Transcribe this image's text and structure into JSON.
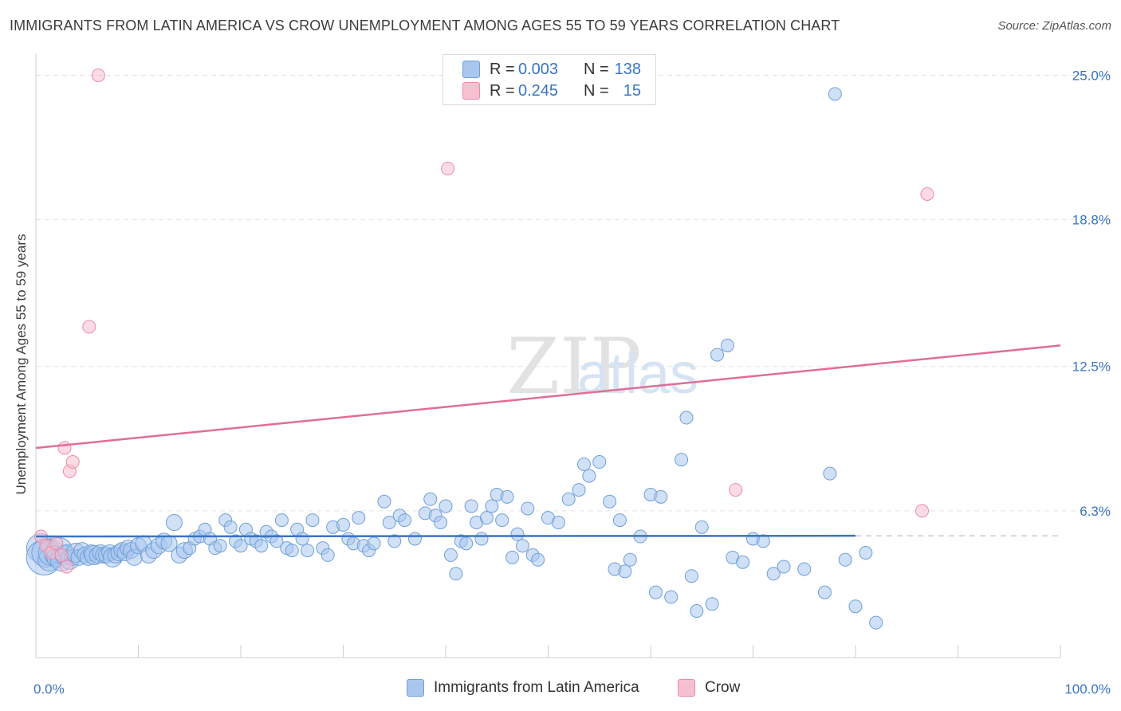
{
  "title": "IMMIGRANTS FROM LATIN AMERICA VS CROW UNEMPLOYMENT AMONG AGES 55 TO 59 YEARS CORRELATION CHART",
  "source": "Source: ZipAtlas.com",
  "watermark": {
    "zip": "ZIP",
    "atlas": "atlas"
  },
  "legend": {
    "rows": [
      {
        "r_label": "R =",
        "r_value": "0.003",
        "n_label": "N =",
        "n_value": "138"
      },
      {
        "r_label": "R =",
        "r_value": "0.245",
        "n_label": "N =",
        "n_value": "15"
      }
    ]
  },
  "bottom_legend": {
    "series1": "Immigrants from Latin America",
    "series2": "Crow"
  },
  "colors": {
    "blue_fill": "#a9c7ee",
    "blue_stroke": "#6f9fd8",
    "blue_line": "#3a74c4",
    "pink_fill": "#f7c0d0",
    "pink_stroke": "#ec8aa8",
    "pink_line": "#e06e98",
    "tick_label": "#3a74c4",
    "grid": "#e3e3e3"
  },
  "chart_data": {
    "type": "scatter",
    "title": "IMMIGRANTS FROM LATIN AMERICA VS CROW UNEMPLOYMENT AMONG AGES 55 TO 59 YEARS CORRELATION CHART",
    "xlabel": "",
    "ylabel": "Unemployment Among Ages 55 to 59 years",
    "xlim": [
      0,
      100
    ],
    "ylim": [
      0,
      25.7
    ],
    "x_tick_labels": [
      "0.0%",
      "100.0%"
    ],
    "y_ticks": [
      6.3,
      12.5,
      18.8,
      25.0
    ],
    "y_tick_labels": [
      "6.3%",
      "12.5%",
      "18.8%",
      "25.0%"
    ],
    "grid": true,
    "series": [
      {
        "name": "Immigrants from Latin America",
        "R": 0.003,
        "N": 138,
        "trend": {
          "x0": 0,
          "y0": 5.2,
          "x1": 80,
          "y1": 5.23,
          "dashed_to": 100
        },
        "points": [
          [
            0.5,
            4.7,
            18
          ],
          [
            0.8,
            4.3,
            22
          ],
          [
            1,
            4.5,
            18
          ],
          [
            1.3,
            4.2,
            14
          ],
          [
            1.5,
            4.5,
            16
          ],
          [
            1.8,
            4.4,
            12
          ],
          [
            2,
            4.3,
            12
          ],
          [
            2.3,
            4.6,
            16
          ],
          [
            2.5,
            4.2,
            14
          ],
          [
            2.8,
            4.4,
            12
          ],
          [
            3,
            4.5,
            10
          ],
          [
            3.3,
            4.2,
            12
          ],
          [
            3.6,
            4.3,
            10
          ],
          [
            3.9,
            4.5,
            12
          ],
          [
            4.2,
            4.3,
            10
          ],
          [
            4.5,
            4.6,
            10
          ],
          [
            4.8,
            4.4,
            10
          ],
          [
            5.1,
            4.3,
            10
          ],
          [
            5.4,
            4.5,
            10
          ],
          [
            5.7,
            4.4,
            12
          ],
          [
            6,
            4.4,
            10
          ],
          [
            6.3,
            4.5,
            10
          ],
          [
            6.6,
            4.4,
            10
          ],
          [
            6.9,
            4.4,
            10
          ],
          [
            7.2,
            4.5,
            10
          ],
          [
            7.5,
            4.3,
            12
          ],
          [
            7.8,
            4.4,
            10
          ],
          [
            8.1,
            4.5,
            10
          ],
          [
            8.4,
            4.6,
            10
          ],
          [
            8.7,
            4.5,
            10
          ],
          [
            9,
            4.7,
            10
          ],
          [
            9.3,
            4.6,
            10
          ],
          [
            9.6,
            4.3,
            10
          ],
          [
            10,
            4.8,
            10
          ],
          [
            10.5,
            4.9,
            10
          ],
          [
            11,
            4.4,
            10
          ],
          [
            11.5,
            4.6,
            10
          ],
          [
            12,
            4.8,
            10
          ],
          [
            12.5,
            5.0,
            10
          ],
          [
            13,
            4.9,
            10
          ],
          [
            13.5,
            5.8,
            10
          ],
          [
            14,
            4.4,
            10
          ],
          [
            14.5,
            4.6,
            10
          ],
          [
            15,
            4.7,
            8
          ],
          [
            15.5,
            5.1,
            8
          ],
          [
            16,
            5.2,
            8
          ],
          [
            16.5,
            5.5,
            8
          ],
          [
            17,
            5.1,
            8
          ],
          [
            17.5,
            4.7,
            8
          ],
          [
            18,
            4.8,
            8
          ],
          [
            18.5,
            5.9,
            8
          ],
          [
            19,
            5.6,
            8
          ],
          [
            19.5,
            5.0,
            8
          ],
          [
            20,
            4.8,
            8
          ],
          [
            20.5,
            5.5,
            8
          ],
          [
            21,
            5.1,
            8
          ],
          [
            21.5,
            5.0,
            8
          ],
          [
            22,
            4.8,
            8
          ],
          [
            22.5,
            5.4,
            8
          ],
          [
            23,
            5.2,
            8
          ],
          [
            23.5,
            5.0,
            8
          ],
          [
            24,
            5.9,
            8
          ],
          [
            24.5,
            4.7,
            8
          ],
          [
            25,
            4.6,
            8
          ],
          [
            25.5,
            5.5,
            8
          ],
          [
            26,
            5.1,
            8
          ],
          [
            26.5,
            4.6,
            8
          ],
          [
            27,
            5.9,
            8
          ],
          [
            28,
            4.7,
            8
          ],
          [
            28.5,
            4.4,
            8
          ],
          [
            29,
            5.6,
            8
          ],
          [
            30,
            5.7,
            8
          ],
          [
            30.5,
            5.1,
            8
          ],
          [
            31,
            4.9,
            8
          ],
          [
            31.5,
            6.0,
            8
          ],
          [
            32,
            4.8,
            8
          ],
          [
            32.5,
            4.6,
            8
          ],
          [
            33,
            4.9,
            8
          ],
          [
            34,
            6.7,
            8
          ],
          [
            34.5,
            5.8,
            8
          ],
          [
            35,
            5.0,
            8
          ],
          [
            35.5,
            6.1,
            8
          ],
          [
            36,
            5.9,
            8
          ],
          [
            37,
            5.1,
            8
          ],
          [
            38,
            6.2,
            8
          ],
          [
            38.5,
            6.8,
            8
          ],
          [
            39,
            6.1,
            8
          ],
          [
            39.5,
            5.8,
            8
          ],
          [
            40,
            6.5,
            8
          ],
          [
            40.5,
            4.4,
            8
          ],
          [
            41,
            3.6,
            8
          ],
          [
            41.5,
            5.0,
            8
          ],
          [
            42,
            4.9,
            8
          ],
          [
            42.5,
            6.5,
            8
          ],
          [
            43,
            5.8,
            8
          ],
          [
            43.5,
            5.1,
            8
          ],
          [
            44,
            6.0,
            8
          ],
          [
            44.5,
            6.5,
            8
          ],
          [
            45,
            7.0,
            8
          ],
          [
            45.5,
            5.9,
            8
          ],
          [
            46,
            6.9,
            8
          ],
          [
            46.5,
            4.3,
            8
          ],
          [
            47,
            5.3,
            8
          ],
          [
            47.5,
            4.8,
            8
          ],
          [
            48,
            6.4,
            8
          ],
          [
            48.5,
            4.4,
            8
          ],
          [
            49,
            4.2,
            8
          ],
          [
            50,
            6.0,
            8
          ],
          [
            51,
            5.8,
            8
          ],
          [
            52,
            6.8,
            8
          ],
          [
            53,
            7.2,
            8
          ],
          [
            53.5,
            8.3,
            8
          ],
          [
            54,
            7.8,
            8
          ],
          [
            55,
            8.4,
            8
          ],
          [
            56,
            6.7,
            8
          ],
          [
            56.5,
            3.8,
            8
          ],
          [
            57,
            5.9,
            8
          ],
          [
            57.5,
            3.7,
            8
          ],
          [
            58,
            4.2,
            8
          ],
          [
            59,
            5.2,
            8
          ],
          [
            60,
            7.0,
            8
          ],
          [
            60.5,
            2.8,
            8
          ],
          [
            61,
            6.9,
            8
          ],
          [
            62,
            2.6,
            8
          ],
          [
            63,
            8.5,
            8
          ],
          [
            63.5,
            10.3,
            8
          ],
          [
            64,
            3.5,
            8
          ],
          [
            64.5,
            2.0,
            8
          ],
          [
            65,
            5.6,
            8
          ],
          [
            66,
            2.3,
            8
          ],
          [
            66.5,
            13.0,
            8
          ],
          [
            67.5,
            13.4,
            8
          ],
          [
            68,
            4.3,
            8
          ],
          [
            69,
            4.1,
            8
          ],
          [
            70,
            5.1,
            8
          ],
          [
            71,
            5.0,
            8
          ],
          [
            72,
            3.6,
            8
          ],
          [
            73,
            3.9,
            8
          ],
          [
            75,
            3.8,
            8
          ],
          [
            77,
            2.8,
            8
          ],
          [
            77.5,
            7.9,
            8
          ],
          [
            78,
            24.2,
            8
          ],
          [
            79,
            4.2,
            8
          ],
          [
            80,
            2.2,
            8
          ],
          [
            81,
            4.5,
            8
          ],
          [
            82,
            1.5,
            8
          ]
        ]
      },
      {
        "name": "Crow",
        "R": 0.245,
        "N": 15,
        "trend": {
          "x0": 0,
          "y0": 9.0,
          "x1": 100,
          "y1": 13.4
        },
        "points": [
          [
            0.5,
            5.2,
            8
          ],
          [
            1,
            4.8,
            8
          ],
          [
            1.5,
            4.5,
            8
          ],
          [
            2,
            4.9,
            8
          ],
          [
            2.5,
            4.4,
            8
          ],
          [
            2.8,
            9.0,
            8
          ],
          [
            3,
            3.9,
            8
          ],
          [
            3.3,
            8.0,
            8
          ],
          [
            3.6,
            8.4,
            8
          ],
          [
            5.2,
            14.2,
            8
          ],
          [
            6.1,
            25.0,
            8
          ],
          [
            40.2,
            21.0,
            8
          ],
          [
            68.3,
            7.2,
            8
          ],
          [
            86.5,
            6.3,
            8
          ],
          [
            87,
            19.9,
            8
          ]
        ]
      }
    ]
  }
}
